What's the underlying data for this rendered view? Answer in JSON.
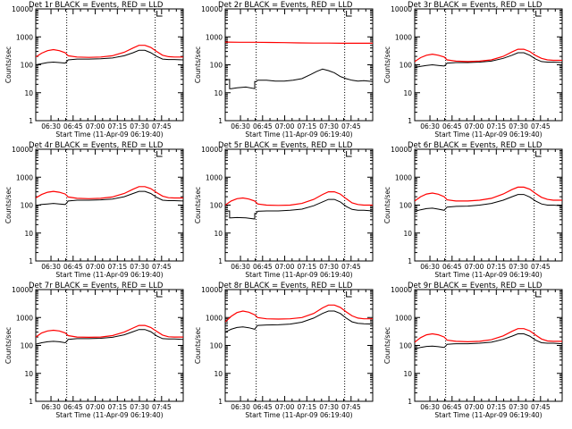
{
  "colors": {
    "background": "#ffffff",
    "axes": "#000000",
    "events_series": "#000000",
    "lld_series": "#ff0000"
  },
  "shared": {
    "ylabel": "Counts/sec",
    "xlabel": "Start Time (11-Apr-09 06:19:40)",
    "x_tick_labels": [
      "06:30",
      "06:45",
      "07:00",
      "07:15",
      "07:30",
      "07:45"
    ],
    "y_tick_labels": [
      "1",
      "10",
      "100",
      "1000",
      "10000"
    ],
    "scale": "log",
    "grid": false
  },
  "chart_data": [
    {
      "type": "line",
      "title": "Det 1r BLACK = Events, RED = LLD",
      "xlabel": "Start Time (11-Apr-09 06:19:40)",
      "ylabel": "Counts/sec",
      "x_units": "minutes after 06:19:40",
      "xlim": [
        0,
        100
      ],
      "ylim": [
        1,
        10000
      ],
      "y_scale": "log",
      "vlines_x": [
        21,
        81
      ],
      "series": [
        {
          "name": "Events",
          "color": "#000000",
          "x": [
            0,
            4,
            8,
            12,
            16,
            20,
            21,
            22,
            28,
            36,
            44,
            52,
            60,
            66,
            70,
            74,
            78,
            82,
            86,
            90,
            94,
            100
          ],
          "y": [
            100,
            110,
            120,
            125,
            120,
            115,
            130,
            150,
            160,
            160,
            165,
            175,
            210,
            270,
            330,
            330,
            270,
            200,
            160,
            155,
            155,
            150
          ]
        },
        {
          "name": "LLD",
          "color": "#ff0000",
          "x": [
            0,
            4,
            8,
            12,
            16,
            20,
            22,
            28,
            36,
            44,
            52,
            60,
            66,
            70,
            74,
            78,
            82,
            86,
            90,
            94,
            100
          ],
          "y": [
            190,
            260,
            320,
            350,
            320,
            270,
            210,
            190,
            185,
            190,
            210,
            280,
            400,
            500,
            500,
            420,
            300,
            220,
            195,
            190,
            190
          ]
        }
      ]
    },
    {
      "type": "line",
      "title": "Det 2r BLACK = Events, RED = LLD",
      "xlabel": "Start Time (11-Apr-09 06:19:40)",
      "ylabel": "Counts/sec",
      "x_units": "minutes after 06:19:40",
      "xlim": [
        0,
        100
      ],
      "ylim": [
        1,
        10000
      ],
      "y_scale": "log",
      "vlines_x": [
        21,
        81
      ],
      "series": [
        {
          "name": "Events",
          "color": "#000000",
          "x": [
            0,
            3,
            4,
            8,
            14,
            20,
            21,
            22,
            28,
            34,
            40,
            46,
            52,
            58,
            62,
            66,
            70,
            74,
            78,
            82,
            86,
            90,
            94,
            100
          ],
          "y": [
            28,
            30,
            14,
            15,
            16,
            14,
            25,
            28,
            28,
            26,
            26,
            28,
            32,
            45,
            58,
            70,
            62,
            52,
            38,
            32,
            28,
            26,
            27,
            25
          ]
        },
        {
          "name": "LLD",
          "color": "#ff0000",
          "x": [
            0,
            10,
            20,
            30,
            40,
            50,
            60,
            70,
            80,
            90,
            100
          ],
          "y": [
            650,
            640,
            640,
            630,
            620,
            610,
            600,
            600,
            590,
            590,
            590
          ]
        }
      ]
    },
    {
      "type": "line",
      "title": "Det 3r BLACK = Events, RED = LLD",
      "xlabel": "Start Time (11-Apr-09 06:19:40)",
      "ylabel": "Counts/sec",
      "x_units": "minutes after 06:19:40",
      "xlim": [
        0,
        100
      ],
      "ylim": [
        1,
        10000
      ],
      "y_scale": "log",
      "vlines_x": [
        21,
        81
      ],
      "series": [
        {
          "name": "Events",
          "color": "#000000",
          "x": [
            0,
            4,
            8,
            12,
            16,
            20,
            21,
            22,
            28,
            36,
            44,
            52,
            60,
            66,
            70,
            74,
            78,
            82,
            86,
            90,
            94,
            100
          ],
          "y": [
            80,
            88,
            95,
            100,
            95,
            90,
            100,
            115,
            120,
            120,
            125,
            135,
            170,
            220,
            270,
            270,
            220,
            160,
            130,
            125,
            125,
            120
          ]
        },
        {
          "name": "LLD",
          "color": "#ff0000",
          "x": [
            0,
            4,
            8,
            12,
            16,
            20,
            22,
            28,
            36,
            44,
            52,
            60,
            66,
            70,
            74,
            78,
            82,
            86,
            90,
            94,
            100
          ],
          "y": [
            130,
            180,
            220,
            240,
            220,
            190,
            150,
            135,
            130,
            135,
            150,
            200,
            290,
            360,
            360,
            300,
            215,
            170,
            150,
            145,
            145
          ]
        }
      ]
    },
    {
      "type": "line",
      "title": "Det 4r BLACK = Events, RED = LLD",
      "xlabel": "Start Time (11-Apr-09 06:19:40)",
      "ylabel": "Counts/sec",
      "x_units": "minutes after 06:19:40",
      "xlim": [
        0,
        100
      ],
      "ylim": [
        1,
        10000
      ],
      "y_scale": "log",
      "vlines_x": [
        21,
        81
      ],
      "series": [
        {
          "name": "Events",
          "color": "#000000",
          "x": [
            0,
            4,
            8,
            12,
            16,
            20,
            21,
            22,
            28,
            36,
            44,
            52,
            60,
            66,
            70,
            74,
            78,
            82,
            86,
            90,
            94,
            100
          ],
          "y": [
            95,
            105,
            110,
            115,
            110,
            105,
            120,
            140,
            150,
            150,
            155,
            165,
            200,
            260,
            310,
            310,
            260,
            190,
            150,
            145,
            145,
            140
          ]
        },
        {
          "name": "LLD",
          "color": "#ff0000",
          "x": [
            0,
            4,
            8,
            12,
            16,
            20,
            22,
            28,
            36,
            44,
            52,
            60,
            66,
            70,
            74,
            78,
            82,
            86,
            90,
            94,
            100
          ],
          "y": [
            180,
            240,
            290,
            310,
            290,
            250,
            195,
            175,
            170,
            175,
            195,
            260,
            370,
            460,
            460,
            390,
            280,
            210,
            185,
            180,
            180
          ]
        }
      ]
    },
    {
      "type": "line",
      "title": "Det 5r BLACK = Events, RED = LLD",
      "xlabel": "Start Time (11-Apr-09 06:19:40)",
      "ylabel": "Counts/sec",
      "x_units": "minutes after 06:19:40",
      "xlim": [
        0,
        100
      ],
      "ylim": [
        1,
        10000
      ],
      "y_scale": "log",
      "vlines_x": [
        21,
        81
      ],
      "series": [
        {
          "name": "Events",
          "color": "#000000",
          "x": [
            0,
            3,
            4,
            8,
            14,
            20,
            21,
            22,
            28,
            36,
            44,
            52,
            60,
            66,
            70,
            74,
            78,
            82,
            86,
            90,
            94,
            100
          ],
          "y": [
            60,
            62,
            35,
            36,
            35,
            32,
            50,
            60,
            62,
            62,
            65,
            72,
            95,
            130,
            160,
            160,
            130,
            90,
            70,
            65,
            65,
            62
          ]
        },
        {
          "name": "LLD",
          "color": "#ff0000",
          "x": [
            0,
            4,
            8,
            12,
            16,
            20,
            22,
            28,
            36,
            44,
            52,
            60,
            66,
            70,
            74,
            78,
            82,
            86,
            90,
            94,
            100
          ],
          "y": [
            100,
            140,
            170,
            180,
            165,
            140,
            110,
            100,
            98,
            100,
            115,
            160,
            240,
            300,
            300,
            250,
            170,
            120,
            105,
            100,
            100
          ]
        }
      ]
    },
    {
      "type": "line",
      "title": "Det 6r BLACK = Events, RED = LLD",
      "xlabel": "Start Time (11-Apr-09 06:19:40)",
      "ylabel": "Counts/sec",
      "x_units": "minutes after 06:19:40",
      "xlim": [
        0,
        100
      ],
      "ylim": [
        1,
        10000
      ],
      "y_scale": "log",
      "vlines_x": [
        21,
        81
      ],
      "series": [
        {
          "name": "Events",
          "color": "#000000",
          "x": [
            0,
            4,
            8,
            12,
            16,
            20,
            21,
            22,
            28,
            36,
            44,
            52,
            60,
            66,
            70,
            74,
            78,
            82,
            86,
            90,
            94,
            100
          ],
          "y": [
            60,
            68,
            75,
            78,
            72,
            65,
            75,
            85,
            90,
            92,
            100,
            115,
            150,
            200,
            240,
            240,
            195,
            140,
            110,
            100,
            100,
            95
          ]
        },
        {
          "name": "LLD",
          "color": "#ff0000",
          "x": [
            0,
            4,
            8,
            12,
            16,
            20,
            22,
            28,
            36,
            44,
            52,
            60,
            66,
            70,
            74,
            78,
            82,
            86,
            90,
            94,
            100
          ],
          "y": [
            140,
            200,
            250,
            270,
            245,
            200,
            155,
            140,
            140,
            150,
            175,
            250,
            360,
            440,
            440,
            370,
            260,
            190,
            160,
            150,
            150
          ]
        }
      ]
    },
    {
      "type": "line",
      "title": "Det 7r BLACK = Events, RED = LLD",
      "xlabel": "Start Time (11-Apr-09 06:19:40)",
      "ylabel": "Counts/sec",
      "x_units": "minutes after 06:19:40",
      "xlim": [
        0,
        100
      ],
      "ylim": [
        1,
        10000
      ],
      "y_scale": "log",
      "vlines_x": [
        21,
        81
      ],
      "series": [
        {
          "name": "Events",
          "color": "#000000",
          "x": [
            0,
            4,
            8,
            12,
            16,
            20,
            21,
            22,
            28,
            36,
            44,
            52,
            60,
            66,
            70,
            74,
            78,
            82,
            86,
            90,
            94,
            100
          ],
          "y": [
            110,
            125,
            135,
            140,
            135,
            125,
            140,
            165,
            175,
            175,
            180,
            195,
            240,
            310,
            370,
            370,
            310,
            220,
            175,
            170,
            170,
            165
          ]
        },
        {
          "name": "LLD",
          "color": "#ff0000",
          "x": [
            0,
            4,
            8,
            12,
            16,
            20,
            22,
            28,
            36,
            44,
            52,
            60,
            66,
            70,
            74,
            78,
            82,
            86,
            90,
            94,
            100
          ],
          "y": [
            200,
            280,
            330,
            350,
            330,
            280,
            225,
            200,
            195,
            200,
            225,
            300,
            420,
            520,
            520,
            440,
            320,
            235,
            205,
            200,
            200
          ]
        }
      ]
    },
    {
      "type": "line",
      "title": "Det 8r BLACK = Events, RED = LLD",
      "xlabel": "Start Time (11-Apr-09 06:19:40)",
      "ylabel": "Counts/sec",
      "x_units": "minutes after 06:19:40",
      "xlim": [
        0,
        100
      ],
      "ylim": [
        1,
        10000
      ],
      "y_scale": "log",
      "vlines_x": [
        21,
        81
      ],
      "series": [
        {
          "name": "Events",
          "color": "#000000",
          "x": [
            0,
            4,
            8,
            12,
            16,
            20,
            21,
            22,
            28,
            36,
            44,
            52,
            60,
            66,
            70,
            74,
            78,
            82,
            86,
            90,
            94,
            100
          ],
          "y": [
            300,
            380,
            440,
            460,
            430,
            380,
            450,
            520,
            540,
            550,
            580,
            680,
            950,
            1400,
            1700,
            1700,
            1400,
            950,
            700,
            620,
            600,
            580
          ]
        },
        {
          "name": "LLD",
          "color": "#ff0000",
          "x": [
            0,
            4,
            8,
            12,
            16,
            20,
            22,
            28,
            36,
            44,
            52,
            60,
            66,
            70,
            74,
            78,
            82,
            86,
            90,
            94,
            100
          ],
          "y": [
            700,
            1100,
            1500,
            1700,
            1550,
            1250,
            1000,
            900,
            880,
            900,
            1000,
            1400,
            2200,
            2800,
            2800,
            2300,
            1600,
            1150,
            950,
            900,
            900
          ]
        }
      ]
    },
    {
      "type": "line",
      "title": "Det 9r BLACK = Events, RED = LLD",
      "xlabel": "Start Time (11-Apr-09 06:19:40)",
      "ylabel": "Counts/sec",
      "x_units": "minutes after 06:19:40",
      "xlim": [
        0,
        100
      ],
      "ylim": [
        1,
        10000
      ],
      "y_scale": "log",
      "vlines_x": [
        21,
        81
      ],
      "series": [
        {
          "name": "Events",
          "color": "#000000",
          "x": [
            0,
            4,
            8,
            12,
            16,
            20,
            21,
            22,
            28,
            36,
            44,
            52,
            60,
            66,
            70,
            74,
            78,
            82,
            86,
            90,
            94,
            100
          ],
          "y": [
            75,
            85,
            92,
            95,
            90,
            85,
            95,
            110,
            115,
            115,
            120,
            130,
            165,
            215,
            260,
            260,
            215,
            155,
            125,
            120,
            120,
            115
          ]
        },
        {
          "name": "LLD",
          "color": "#ff0000",
          "x": [
            0,
            4,
            8,
            12,
            16,
            20,
            22,
            28,
            36,
            44,
            52,
            60,
            66,
            70,
            74,
            78,
            82,
            86,
            90,
            94,
            100
          ],
          "y": [
            130,
            190,
            240,
            260,
            240,
            200,
            155,
            140,
            135,
            140,
            160,
            220,
            320,
            400,
            400,
            335,
            235,
            170,
            145,
            140,
            140
          ]
        }
      ]
    }
  ]
}
